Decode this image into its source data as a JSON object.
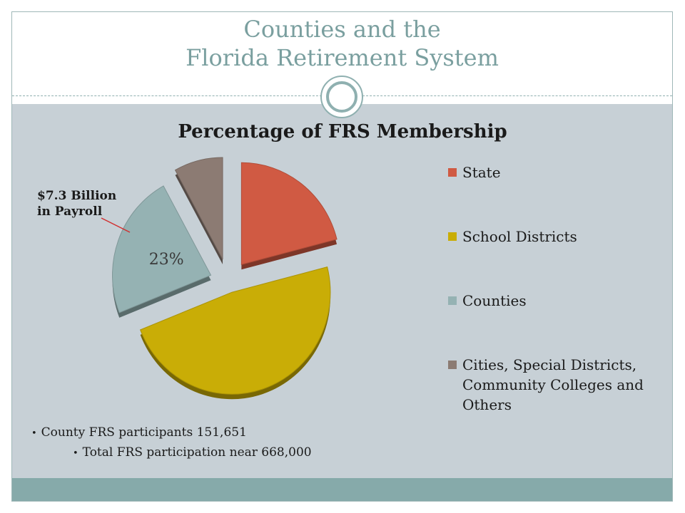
{
  "slide": {
    "title_line1": "Counties and the",
    "title_line2": "Florida Retirement System"
  },
  "annotation": {
    "line1": "$7.3 Billion",
    "line2": "in Payroll"
  },
  "bullets": [
    "County FRS participants  151,651",
    "Total FRS participation near 668,000"
  ],
  "colors": {
    "state": "#d05a43",
    "school_districts": "#c9ad06",
    "counties": "#95b2b3",
    "cities": "#8c7b73",
    "background": "#c7d0d6",
    "accent": "#8fb0b0"
  },
  "chart_data": {
    "type": "pie",
    "title": "Percentage of  FRS Membership",
    "categories": [
      "State",
      "School Districts",
      "Counties",
      "Cities, Special Districts, Community Colleges and Others"
    ],
    "values": [
      21,
      48,
      23,
      8
    ],
    "data_labels": [
      "",
      "",
      "23%",
      ""
    ],
    "legend_position": "right",
    "exploded": true,
    "three_d": true
  }
}
